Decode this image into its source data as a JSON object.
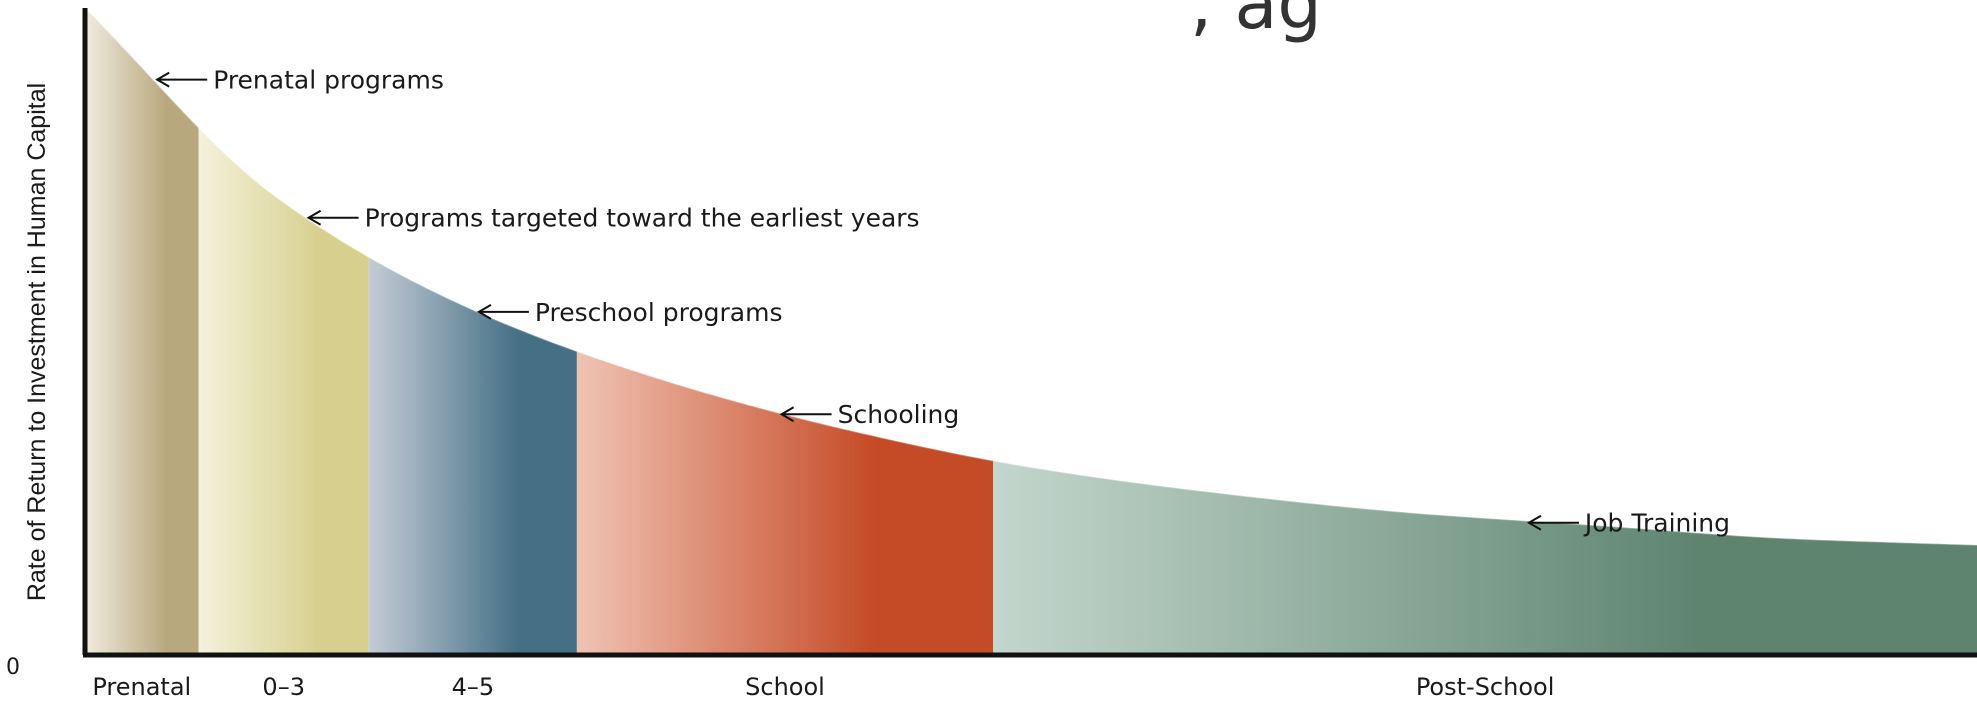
{
  "chart_data": {
    "type": "area",
    "title_fragment": ", ag",
    "ylabel": "Rate of Return to Investment in Human Capital",
    "y_zero_label": "0",
    "categories": [
      "Prenatal",
      "0–3",
      "4–5",
      "School",
      "Post-School"
    ],
    "curve": {
      "x": [
        0,
        10,
        20,
        30,
        40,
        50,
        60,
        70,
        80,
        90,
        100
      ],
      "y": [
        1.0,
        0.71,
        0.54,
        0.43,
        0.35,
        0.29,
        0.25,
        0.22,
        0.2,
        0.18,
        0.17
      ]
    },
    "segments": [
      {
        "category": "Prenatal",
        "x_range": [
          0,
          6
        ],
        "color_light": "#f1ebdf",
        "color_dark": "#b8a87e"
      },
      {
        "category": "0–3",
        "x_range": [
          6,
          15
        ],
        "color_light": "#f4f2dc",
        "color_dark": "#d7cf8e"
      },
      {
        "category": "4–5",
        "x_range": [
          15,
          26
        ],
        "color_light": "#c4ccd6",
        "color_dark": "#446f85"
      },
      {
        "category": "School",
        "x_range": [
          26,
          48
        ],
        "color_light": "#f0c3b3",
        "color_dark": "#c54a26"
      },
      {
        "category": "Post-School",
        "x_range": [
          48,
          100
        ],
        "color_light": "#c3d6cd",
        "color_dark": "#5e8470"
      }
    ],
    "annotations": [
      {
        "text": "Prenatal programs",
        "x": 3.5
      },
      {
        "text": "Programs targeted toward the earliest years",
        "x": 11.5
      },
      {
        "text": "Preschool programs",
        "x": 20.5
      },
      {
        "text": "Schooling",
        "x": 36.5
      },
      {
        "text": "Job Training",
        "x": 76
      }
    ],
    "xlim": [
      0,
      100
    ],
    "ylim": [
      0,
      1
    ],
    "grid": false,
    "legend": "none"
  }
}
